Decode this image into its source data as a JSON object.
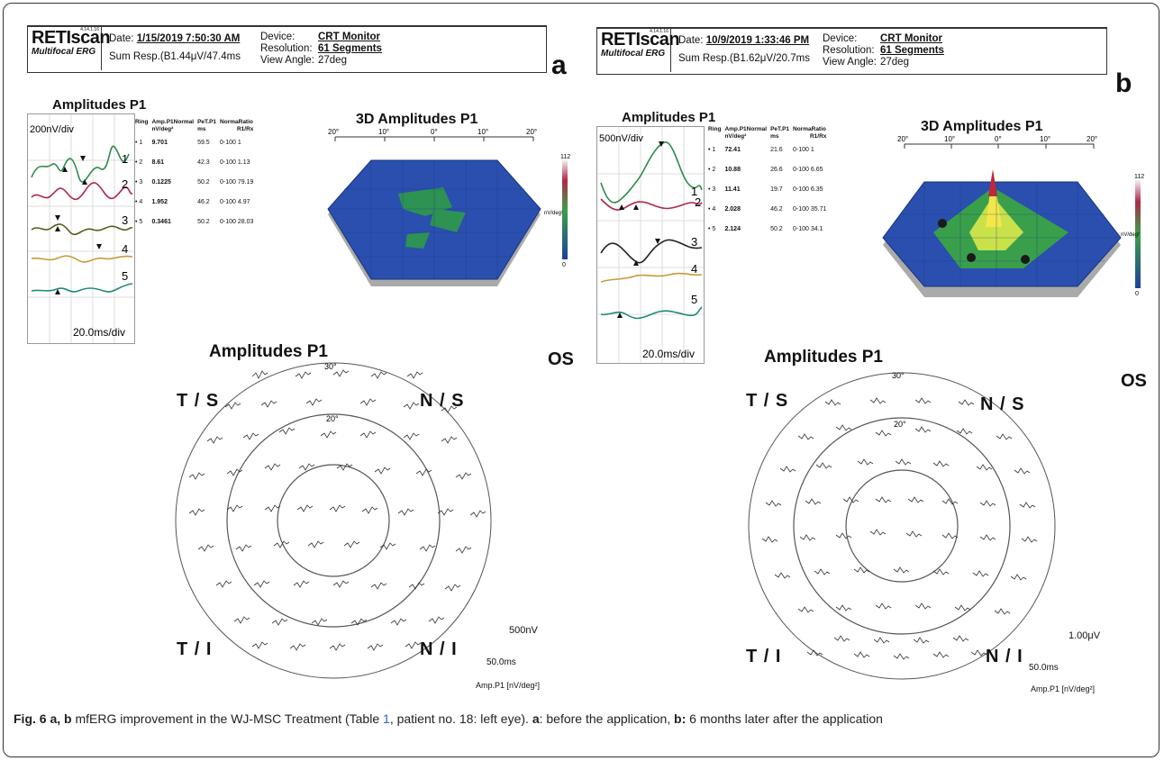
{
  "panels": [
    {
      "letter": "a",
      "header": {
        "logo_main": "RETIscan",
        "logo_sub": "Multifocal ERG",
        "logo_version": "4.14.1.16",
        "date_label": "Date:",
        "date_value": "1/15/2019 7:50:30 AM",
        "sum_resp": "Sum Resp.(B1.44μV/47.4ms",
        "device_label": "Device:",
        "device_value": "CRT Monitor",
        "resolution_label": "Resolution:",
        "resolution_value": "61 Segments",
        "view_angle_label": "View Angle:",
        "view_angle_value": "27deg"
      },
      "amplitudes_title": "Amplitudes P1",
      "scale_y": "200nV/div",
      "scale_x": "20.0ms/div",
      "table": {
        "headers": [
          "Ring",
          "Amp.P1",
          "Normal",
          "PeT.P1",
          "NormaRatio"
        ],
        "units": [
          "",
          "nV/deg²",
          "",
          "ms",
          "R1/Rx"
        ],
        "rows": [
          {
            "ring": "1",
            "amp": "9.701",
            "pet": "59.5",
            "normal": "0-100",
            "ratio": "1"
          },
          {
            "ring": "2",
            "amp": "8.61",
            "pet": "42.3",
            "normal": "0-100",
            "ratio": "1.13"
          },
          {
            "ring": "3",
            "amp": "0.1225",
            "pet": "50.2",
            "normal": "0-100",
            "ratio": "79.19"
          },
          {
            "ring": "4",
            "amp": "1.952",
            "pet": "46.2",
            "normal": "0-100",
            "ratio": "4.97"
          },
          {
            "ring": "5",
            "amp": "0.3461",
            "pet": "50.2",
            "normal": "0-100",
            "ratio": "28.03"
          }
        ]
      },
      "trace_labels": [
        "1",
        "2",
        "3",
        "4",
        "5"
      ],
      "three_d_title": "3D Amplitudes P1",
      "three_d_ticks": [
        "20°",
        "10°",
        "0°",
        "10°",
        "20°"
      ],
      "colorbar_max": "112",
      "colorbar_unit": "nV/deg²",
      "colorbar_min": "0",
      "eye": "OS",
      "field_title": "Amplitudes P1",
      "ring_30": "30°",
      "ring_20": "20°",
      "quadrants": {
        "tl": "T / S",
        "tr": "N / S",
        "bl": "T / I",
        "br": "N / I"
      },
      "amp_scale": "500nV",
      "time_scale": "50.0ms",
      "field_unit": "Amp.P1 [nV/deg²]"
    },
    {
      "letter": "b",
      "header": {
        "logo_main": "RETIscan",
        "logo_sub": "Multifocal ERG",
        "logo_version": "4.14.1.16",
        "date_label": "Date:",
        "date_value": "10/9/2019 1:33:46 PM",
        "sum_resp": "Sum Resp.(B1.62μV/20.7ms",
        "device_label": "Device:",
        "device_value": "CRT Monitor",
        "resolution_label": "Resolution:",
        "resolution_value": "61 Segments",
        "view_angle_label": "View Angle:",
        "view_angle_value": "27deg"
      },
      "amplitudes_title": "Amplitudes P1",
      "scale_y": "500nV/div",
      "scale_x": "20.0ms/div",
      "table": {
        "headers": [
          "Ring",
          "Amp.P1",
          "Normal",
          "PeT.P1",
          "NormaRatio"
        ],
        "units": [
          "",
          "nV/deg²",
          "",
          "ms",
          "R1/Rx"
        ],
        "rows": [
          {
            "ring": "1",
            "amp": "72.41",
            "pet": "21.6",
            "normal": "0-100",
            "ratio": "1"
          },
          {
            "ring": "2",
            "amp": "10.88",
            "pet": "26.6",
            "normal": "0-100",
            "ratio": "6.65"
          },
          {
            "ring": "3",
            "amp": "11.41",
            "pet": "19.7",
            "normal": "0-100",
            "ratio": "6.35"
          },
          {
            "ring": "4",
            "amp": "2.028",
            "pet": "46.2",
            "normal": "0-100",
            "ratio": "35.71"
          },
          {
            "ring": "5",
            "amp": "2.124",
            "pet": "50.2",
            "normal": "0-100",
            "ratio": "34.1"
          }
        ]
      },
      "trace_labels": [
        "1",
        "2",
        "3",
        "4",
        "5"
      ],
      "three_d_title": "3D Amplitudes P1",
      "three_d_ticks": [
        "20°",
        "10°",
        "0°",
        "10°",
        "20°"
      ],
      "colorbar_max": "112",
      "colorbar_unit": "nV/deg²",
      "colorbar_min": "0",
      "eye": "OS",
      "field_title": "Amplitudes P1",
      "ring_30": "30°",
      "ring_20": "20°",
      "quadrants": {
        "tl": "T / S",
        "tr": "N / S",
        "bl": "T / I",
        "br": "N / I"
      },
      "amp_scale": "1.00μV",
      "time_scale": "50.0ms",
      "field_unit": "Amp.P1 [nV/deg²]"
    }
  ],
  "caption": {
    "label": "Fig. 6 a, b",
    "text_1": " mfERG improvement in the WJ-MSC Treatment (Table ",
    "table_ref": "1",
    "text_2": ", patient no. 18: left eye). ",
    "a_label": "a",
    "a_text": ": before the application, ",
    "b_label": "b:",
    "b_text": " 6 months later after the application"
  },
  "colors": {
    "trace_1": "#2f8a4a",
    "trace_2": "#b0284a",
    "trace_3": "#5a5a1e",
    "trace_4": "#c79a3a",
    "trace_5": "#1e8a7a",
    "surface_low": "#1f3f9c",
    "surface_high": "#f5e64a",
    "link": "#2a5bd7"
  }
}
